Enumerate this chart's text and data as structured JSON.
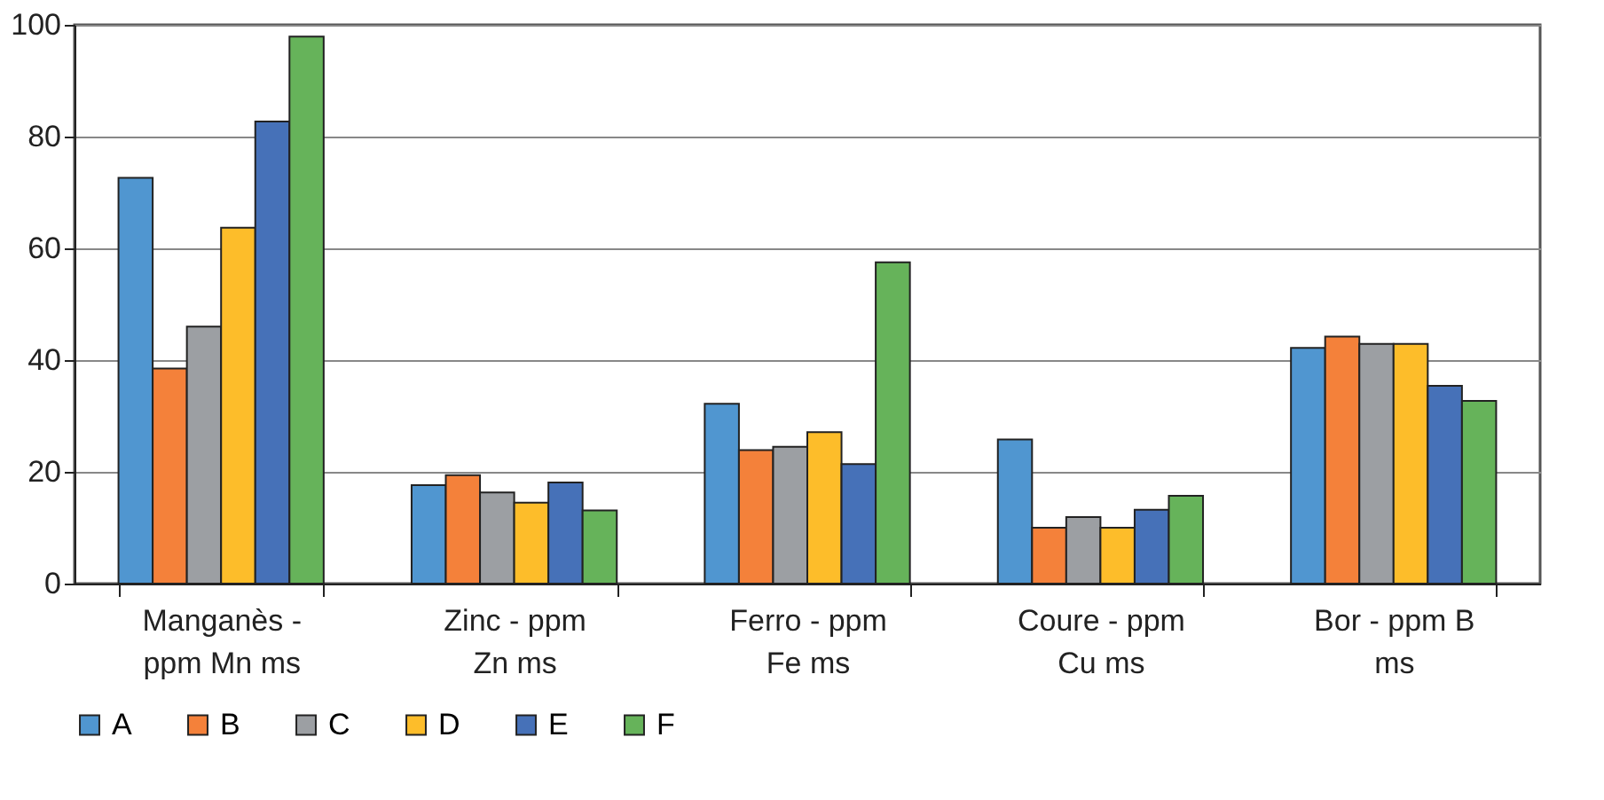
{
  "chart_data": {
    "type": "bar",
    "categories": [
      "Manganès - ppm Mn ms",
      "Zinc - ppm Zn ms",
      "Ferro - ppm Fe ms",
      "Coure - ppm Cu ms",
      "Bor - ppm B ms"
    ],
    "series": [
      {
        "name": "A",
        "color": "#5096d0",
        "values": [
          72.6,
          17.6,
          32.2,
          25.8,
          42.2
        ]
      },
      {
        "name": "B",
        "color": "#f4813a",
        "values": [
          38.5,
          19.4,
          23.9,
          10,
          44.2
        ]
      },
      {
        "name": "C",
        "color": "#9c9fa3",
        "values": [
          46,
          16.3,
          24.5,
          11.9,
          42.9
        ]
      },
      {
        "name": "D",
        "color": "#fdbd2a",
        "values": [
          63.7,
          14.5,
          27.1,
          10,
          42.9
        ]
      },
      {
        "name": "E",
        "color": "#4671b8",
        "values": [
          82.7,
          18.1,
          21.4,
          13.2,
          35.4
        ]
      },
      {
        "name": "F",
        "color": "#66b35a",
        "values": [
          97.9,
          13.1,
          57.5,
          15.7,
          32.7
        ]
      }
    ],
    "ylim": [
      0,
      100
    ],
    "yticks": [
      0,
      20,
      40,
      60,
      80,
      100
    ],
    "grid": "y",
    "legend": "bottom"
  }
}
